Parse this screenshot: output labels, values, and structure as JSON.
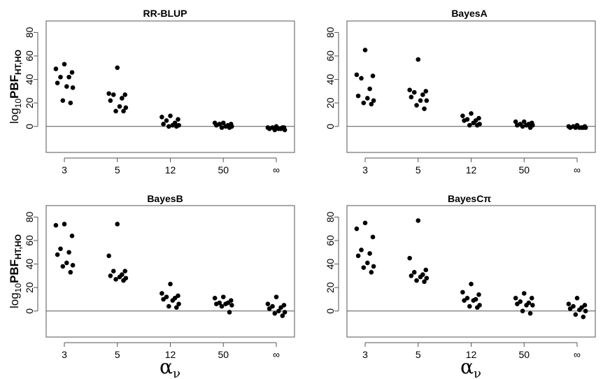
{
  "ylabel": {
    "prefix": "log",
    "base": "10",
    "main": "PBF",
    "subscript": "HT,HO"
  },
  "xlabel": {
    "symbol": "α",
    "subscript": "ν"
  },
  "chart_data": [
    {
      "type": "scatter",
      "title": "RR-BLUP",
      "categories": [
        "3",
        "5",
        "12",
        "50",
        "∞"
      ],
      "ylim": [
        -15,
        85
      ],
      "yticks": [
        "0",
        "20",
        "40",
        "60",
        "80"
      ],
      "reference_line": 0,
      "points": [
        [
          3,
          53
        ],
        [
          3,
          49
        ],
        [
          3,
          46
        ],
        [
          3,
          42
        ],
        [
          3,
          42
        ],
        [
          3,
          37
        ],
        [
          3,
          34
        ],
        [
          3,
          33
        ],
        [
          3,
          22
        ],
        [
          3,
          20
        ],
        [
          5,
          50
        ],
        [
          5,
          28
        ],
        [
          5,
          27
        ],
        [
          5,
          27
        ],
        [
          5,
          24
        ],
        [
          5,
          22
        ],
        [
          5,
          17
        ],
        [
          5,
          16
        ],
        [
          5,
          13
        ],
        [
          5,
          13
        ],
        [
          12,
          9
        ],
        [
          12,
          8
        ],
        [
          12,
          6
        ],
        [
          12,
          5
        ],
        [
          12,
          3
        ],
        [
          12,
          2
        ],
        [
          12,
          1
        ],
        [
          12,
          1
        ],
        [
          12,
          0
        ],
        [
          12,
          0
        ],
        [
          50,
          3
        ],
        [
          50,
          3
        ],
        [
          50,
          2
        ],
        [
          50,
          2
        ],
        [
          50,
          1
        ],
        [
          50,
          1
        ],
        [
          50,
          0
        ],
        [
          50,
          0
        ],
        [
          50,
          -1
        ],
        [
          50,
          -1
        ],
        [
          "∞",
          0
        ],
        [
          "∞",
          -1
        ],
        [
          "∞",
          -1
        ],
        [
          "∞",
          -1
        ],
        [
          "∞",
          -2
        ],
        [
          "∞",
          -2
        ],
        [
          "∞",
          -2
        ],
        [
          "∞",
          -3
        ],
        [
          "∞",
          -3
        ],
        [
          "∞",
          -1
        ]
      ]
    },
    {
      "type": "scatter",
      "title": "BayesA",
      "categories": [
        "3",
        "5",
        "12",
        "50",
        "∞"
      ],
      "ylim": [
        -15,
        85
      ],
      "yticks": [
        "0",
        "20",
        "40",
        "60",
        "80"
      ],
      "reference_line": 0,
      "points": [
        [
          3,
          65
        ],
        [
          3,
          44
        ],
        [
          3,
          43
        ],
        [
          3,
          41
        ],
        [
          3,
          32
        ],
        [
          3,
          26
        ],
        [
          3,
          24
        ],
        [
          3,
          22
        ],
        [
          3,
          20
        ],
        [
          3,
          19
        ],
        [
          5,
          57
        ],
        [
          5,
          31
        ],
        [
          5,
          30
        ],
        [
          5,
          29
        ],
        [
          5,
          27
        ],
        [
          5,
          25
        ],
        [
          5,
          22
        ],
        [
          5,
          22
        ],
        [
          5,
          18
        ],
        [
          5,
          15
        ],
        [
          12,
          11
        ],
        [
          12,
          9
        ],
        [
          12,
          7
        ],
        [
          12,
          6
        ],
        [
          12,
          5
        ],
        [
          12,
          5
        ],
        [
          12,
          3
        ],
        [
          12,
          2
        ],
        [
          12,
          1
        ],
        [
          12,
          1
        ],
        [
          50,
          4
        ],
        [
          50,
          4
        ],
        [
          50,
          3
        ],
        [
          50,
          2
        ],
        [
          50,
          2
        ],
        [
          50,
          1
        ],
        [
          50,
          1
        ],
        [
          50,
          1
        ],
        [
          50,
          0
        ],
        [
          50,
          -1
        ],
        [
          "∞",
          1
        ],
        [
          "∞",
          0
        ],
        [
          "∞",
          0
        ],
        [
          "∞",
          0
        ],
        [
          "∞",
          -1
        ],
        [
          "∞",
          -1
        ],
        [
          "∞",
          -1
        ],
        [
          "∞",
          -1
        ],
        [
          "∞",
          -1
        ],
        [
          "∞",
          -1
        ]
      ]
    },
    {
      "type": "scatter",
      "title": "BayesB",
      "categories": [
        "3",
        "5",
        "12",
        "50",
        "∞"
      ],
      "ylim": [
        -15,
        85
      ],
      "yticks": [
        "0",
        "20",
        "40",
        "60",
        "80"
      ],
      "reference_line": 0,
      "points": [
        [
          3,
          74
        ],
        [
          3,
          73
        ],
        [
          3,
          64
        ],
        [
          3,
          53
        ],
        [
          3,
          50
        ],
        [
          3,
          48
        ],
        [
          3,
          41
        ],
        [
          3,
          39
        ],
        [
          3,
          38
        ],
        [
          3,
          33
        ],
        [
          5,
          74
        ],
        [
          5,
          47
        ],
        [
          5,
          34
        ],
        [
          5,
          34
        ],
        [
          5,
          31
        ],
        [
          5,
          30
        ],
        [
          5,
          29
        ],
        [
          5,
          28
        ],
        [
          5,
          27
        ],
        [
          5,
          26
        ],
        [
          12,
          23
        ],
        [
          12,
          15
        ],
        [
          12,
          13
        ],
        [
          12,
          12
        ],
        [
          12,
          11
        ],
        [
          12,
          10
        ],
        [
          12,
          9
        ],
        [
          12,
          6
        ],
        [
          12,
          4
        ],
        [
          12,
          3
        ],
        [
          50,
          12
        ],
        [
          50,
          11
        ],
        [
          50,
          9
        ],
        [
          50,
          7
        ],
        [
          50,
          7
        ],
        [
          50,
          6
        ],
        [
          50,
          6
        ],
        [
          50,
          5
        ],
        [
          50,
          4
        ],
        [
          50,
          -1
        ],
        [
          "∞",
          12
        ],
        [
          "∞",
          6
        ],
        [
          "∞",
          5
        ],
        [
          "∞",
          4
        ],
        [
          "∞",
          3
        ],
        [
          "∞",
          2
        ],
        [
          "∞",
          0
        ],
        [
          "∞",
          -1
        ],
        [
          "∞",
          -2
        ],
        [
          "∞",
          -4
        ]
      ]
    },
    {
      "type": "scatter",
      "title": "BayesCπ",
      "categories": [
        "3",
        "5",
        "12",
        "50",
        "∞"
      ],
      "ylim": [
        -15,
        85
      ],
      "yticks": [
        "0",
        "20",
        "40",
        "60",
        "80"
      ],
      "reference_line": 0,
      "points": [
        [
          3,
          75
        ],
        [
          3,
          70
        ],
        [
          3,
          63
        ],
        [
          3,
          52
        ],
        [
          3,
          49
        ],
        [
          3,
          47
        ],
        [
          3,
          41
        ],
        [
          3,
          38
        ],
        [
          3,
          37
        ],
        [
          3,
          33
        ],
        [
          5,
          77
        ],
        [
          5,
          45
        ],
        [
          5,
          35
        ],
        [
          5,
          33
        ],
        [
          5,
          31
        ],
        [
          5,
          30
        ],
        [
          5,
          29
        ],
        [
          5,
          28
        ],
        [
          5,
          26
        ],
        [
          5,
          25
        ],
        [
          12,
          23
        ],
        [
          12,
          16
        ],
        [
          12,
          14
        ],
        [
          12,
          11
        ],
        [
          12,
          10
        ],
        [
          12,
          9
        ],
        [
          12,
          9
        ],
        [
          12,
          5
        ],
        [
          12,
          4
        ],
        [
          12,
          3
        ],
        [
          50,
          15
        ],
        [
          50,
          11
        ],
        [
          50,
          11
        ],
        [
          50,
          8
        ],
        [
          50,
          7
        ],
        [
          50,
          6
        ],
        [
          50,
          5
        ],
        [
          50,
          5
        ],
        [
          50,
          0
        ],
        [
          50,
          -2
        ],
        [
          "∞",
          11
        ],
        [
          "∞",
          6
        ],
        [
          "∞",
          5
        ],
        [
          "∞",
          4
        ],
        [
          "∞",
          3
        ],
        [
          "∞",
          2
        ],
        [
          "∞",
          1
        ],
        [
          "∞",
          0
        ],
        [
          "∞",
          -3
        ],
        [
          "∞",
          -5
        ]
      ]
    }
  ]
}
